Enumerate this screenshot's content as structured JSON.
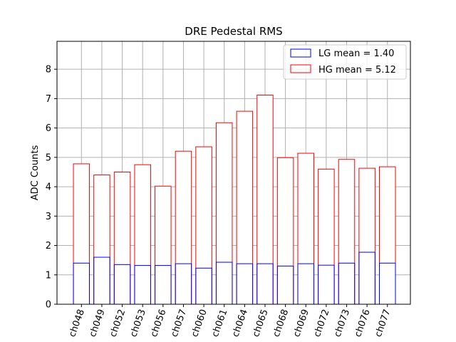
{
  "chart_data": {
    "type": "bar",
    "title": "DRE Pedestal RMS",
    "xlabel": "",
    "ylabel": "ADC Counts",
    "ylim": [
      0,
      8.95
    ],
    "yticks": [
      0,
      1,
      2,
      3,
      4,
      5,
      6,
      7,
      8
    ],
    "grid": true,
    "legend_position": "top-right",
    "categories": [
      "ch048",
      "ch049",
      "ch052",
      "ch053",
      "ch056",
      "ch057",
      "ch060",
      "ch061",
      "ch064",
      "ch065",
      "ch068",
      "ch069",
      "ch072",
      "ch073",
      "ch076",
      "ch077"
    ],
    "series": [
      {
        "name": "LG mean = 1.40",
        "color": "#0000ff",
        "values": [
          1.4,
          1.6,
          1.35,
          1.32,
          1.32,
          1.38,
          1.23,
          1.43,
          1.38,
          1.38,
          1.3,
          1.38,
          1.33,
          1.4,
          1.77,
          1.4
        ]
      },
      {
        "name": "HG mean = 5.12",
        "color": "#ff0000",
        "values": [
          4.78,
          4.4,
          4.5,
          4.75,
          4.02,
          5.21,
          5.36,
          6.18,
          6.57,
          7.12,
          4.99,
          5.14,
          4.6,
          4.93,
          4.63,
          4.68
        ]
      }
    ]
  }
}
